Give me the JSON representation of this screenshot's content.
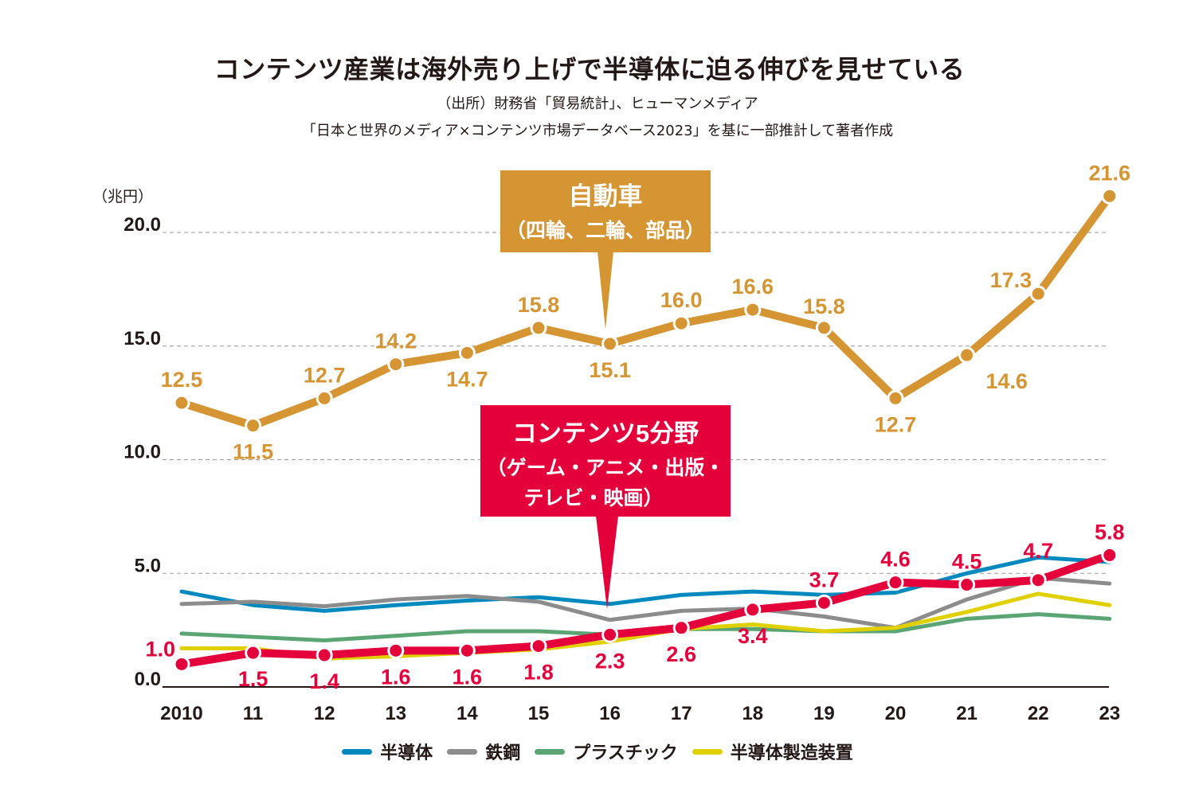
{
  "header": {
    "title": "コンテンツ産業は海外売り上げで半導体に迫る伸びを見せている",
    "source_line1": "（出所）財務省「貿易統計」、ヒューマンメディア",
    "source_line2": "「日本と世界のメディア×コンテンツ市場データベース2023」を基に一部推計して著者作成"
  },
  "colors": {
    "auto": "#D69533",
    "contents": "#E4003B",
    "semiconductor": "#0089BF",
    "steel": "#8C8C8C",
    "plastic": "#5BA574",
    "semi_equipment": "#E0D000",
    "grid": "#9A9A9A",
    "axis": "#231815"
  },
  "chart_data": {
    "type": "line",
    "title": "コンテンツ産業は海外売り上げで半導体に迫る伸びを見せている",
    "xlabel": "",
    "ylabel": "（兆円）",
    "ylim": [
      0,
      22
    ],
    "yticks": [
      0,
      5,
      10,
      15,
      20
    ],
    "ytick_labels": [
      "0.0",
      "5.0",
      "10.0",
      "15.0",
      "20.0"
    ],
    "grid": true,
    "categories": [
      "2010",
      "11",
      "12",
      "13",
      "14",
      "15",
      "16",
      "17",
      "18",
      "19",
      "20",
      "21",
      "22",
      "23"
    ],
    "legend_position": "bottom",
    "series": [
      {
        "key": "auto",
        "name": "自動車（四輪、二輪、部品）",
        "callout_title": "自動車",
        "callout_subtitle": "（四輪、二輪、部品）",
        "values": [
          12.5,
          11.5,
          12.7,
          14.2,
          14.7,
          15.8,
          15.1,
          16.0,
          16.6,
          15.8,
          12.7,
          14.6,
          17.3,
          21.6
        ],
        "labels": [
          "12.5",
          "11.5",
          "12.7",
          "14.2",
          "14.7",
          "15.8",
          "15.1",
          "16.0",
          "16.6",
          "15.8",
          "12.7",
          "14.6",
          "17.3",
          "21.6"
        ],
        "label_pos": [
          "above",
          "below",
          "above",
          "above",
          "below",
          "above",
          "below",
          "above",
          "above",
          "above",
          "below",
          "below",
          "above",
          "above"
        ],
        "highlight": true
      },
      {
        "key": "contents",
        "name": "コンテンツ5分野（ゲーム・アニメ・出版・テレビ・映画）",
        "callout_title": "コンテンツ5分野",
        "callout_subtitle": "（ゲーム・アニメ・出版・",
        "callout_subtitle2": "テレビ・映画）",
        "values": [
          1.0,
          1.5,
          1.4,
          1.6,
          1.6,
          1.8,
          2.3,
          2.6,
          3.4,
          3.7,
          4.6,
          4.5,
          4.7,
          5.8
        ],
        "labels": [
          "1.0",
          "1.5",
          "1.4",
          "1.6",
          "1.6",
          "1.8",
          "2.3",
          "2.6",
          "3.4",
          "3.7",
          "4.6",
          "4.5",
          "4.7",
          "5.8"
        ],
        "label_pos": [
          "above",
          "below",
          "below",
          "below",
          "below",
          "below",
          "below",
          "below",
          "below",
          "above",
          "above",
          "above",
          "above",
          "above"
        ],
        "highlight": true
      },
      {
        "key": "semiconductor",
        "name": "半導体",
        "values": [
          4.2,
          3.6,
          3.35,
          3.6,
          3.8,
          3.95,
          3.65,
          4.05,
          4.2,
          4.05,
          4.15,
          5.0,
          5.7,
          5.5
        ],
        "highlight": false
      },
      {
        "key": "steel",
        "name": "鉄鋼",
        "values": [
          3.65,
          3.75,
          3.55,
          3.85,
          4.0,
          3.75,
          2.95,
          3.35,
          3.45,
          3.1,
          2.6,
          3.85,
          4.8,
          4.55
        ],
        "highlight": false
      },
      {
        "key": "plastic",
        "name": "プラスチック",
        "values": [
          2.35,
          2.2,
          2.05,
          2.25,
          2.45,
          2.45,
          2.3,
          2.55,
          2.55,
          2.45,
          2.45,
          3.0,
          3.2,
          3.0
        ],
        "highlight": false
      },
      {
        "key": "semi_equipment",
        "name": "半導体製造装置",
        "values": [
          1.7,
          1.7,
          1.25,
          1.35,
          1.5,
          1.65,
          2.0,
          2.55,
          2.75,
          2.45,
          2.6,
          3.3,
          4.1,
          3.6
        ],
        "highlight": false
      }
    ],
    "legend": [
      {
        "key": "semiconductor",
        "label": "半導体"
      },
      {
        "key": "steel",
        "label": "鉄鋼"
      },
      {
        "key": "plastic",
        "label": "プラスチック"
      },
      {
        "key": "semi_equipment",
        "label": "半導体製造装置"
      }
    ]
  }
}
